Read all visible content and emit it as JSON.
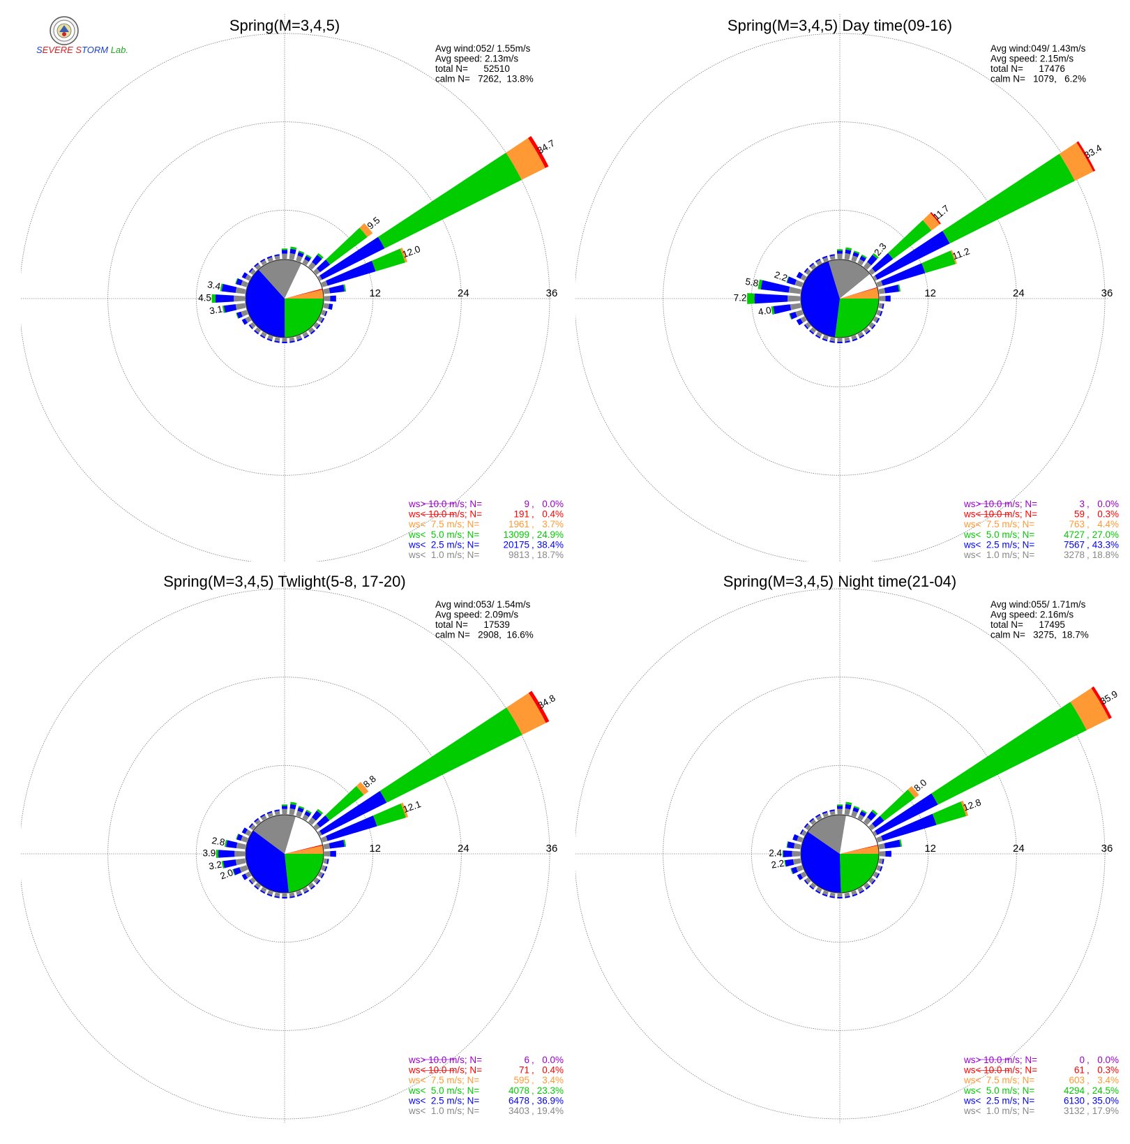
{
  "colors": {
    "ws_gt_10": "#9900cc",
    "ws_lt_10": "#ff0000",
    "ws_lt_7_5": "#ff9933",
    "ws_lt_5": "#00cc00",
    "ws_lt_2_5": "#0000ff",
    "ws_lt_1": "#888888",
    "calm": "#ffffff",
    "grid": "#888888",
    "text": "#000000"
  },
  "logo": {
    "seal_icon": "university-seal-icon",
    "parts": [
      {
        "text": "S",
        "color": "#1a3fd6"
      },
      {
        "text": "EVERE",
        "color": "#e02020"
      },
      {
        "text": " ",
        "color": "#000000"
      },
      {
        "text": "S",
        "color": "#e02020"
      },
      {
        "text": "TORM",
        "color": "#1a3fd6"
      },
      {
        "text": " Lab.",
        "color": "#22a822"
      }
    ]
  },
  "chart_data": [
    {
      "type": "windrose",
      "title": "Spring(M=3,4,5)",
      "rlim": [
        0,
        36
      ],
      "rings": [
        12,
        24,
        36
      ],
      "ring_labels": [
        "12",
        "24",
        "36"
      ],
      "grid": true,
      "stats": [
        "Avg wind:052/ 1.55m/s",
        "Avg speed: 2.13m/s",
        "total N=      52510",
        "calm N=   7262,  13.8%"
      ],
      "speed_classes": [
        "ws> 10.0 m/s",
        "ws< 10.0 m/s",
        "ws<  7.5 m/s",
        "ws<  5.0 m/s",
        "ws<  2.5 m/s",
        "ws<  1.0 m/s"
      ],
      "legend": [
        {
          "label": "ws> 10.0 m/s; N=",
          "n": "9",
          "pct": "0.0%"
        },
        {
          "label": "ws< 10.0 m/s; N=",
          "n": "191",
          "pct": "0.4%"
        },
        {
          "label": "ws<  7.5 m/s; N=",
          "n": "1961",
          "pct": "3.7%"
        },
        {
          "label": "ws<  5.0 m/s; N=",
          "n": "13099",
          "pct": "24.9%"
        },
        {
          "label": "ws<  2.5 m/s; N=",
          "n": "20175",
          "pct": "38.4%"
        },
        {
          "label": "ws<  1.0 m/s; N=",
          "n": "9813",
          "pct": "18.7%"
        }
      ],
      "pie": {
        "ws_lt_1": 18.7,
        "ws_lt_2_5": 38.4,
        "ws_lt_5": 24.9,
        "ws_lt_7_5": 3.7,
        "ws_lt_10": 0.4,
        "calm": 13.8
      },
      "directions": [
        {
          "dir": 60,
          "total": 34.7,
          "label": "34.7",
          "segs": [
            0.3,
            9.5,
            20.8,
            3.6,
            0.5
          ]
        },
        {
          "dir": 50,
          "total": 9.5,
          "label": "9.5",
          "segs": [
            0.6,
            1.7,
            6.3,
            0.9,
            0
          ]
        },
        {
          "dir": 70,
          "total": 12.0,
          "label": "12.0",
          "segs": [
            0.7,
            6.8,
            4.2,
            0.3,
            0
          ]
        },
        {
          "dir": 80,
          "total": 3.0,
          "segs": [
            0.8,
            2.0,
            0.2,
            0,
            0
          ]
        },
        {
          "dir": 40,
          "total": 2.3,
          "segs": [
            0.8,
            1.2,
            0.3,
            0,
            0
          ]
        },
        {
          "dir": 30,
          "total": 1.3,
          "segs": [
            0.6,
            0.5,
            0.2,
            0,
            0
          ]
        },
        {
          "dir": 20,
          "total": 1.4,
          "segs": [
            0.7,
            0.5,
            0.2,
            0,
            0
          ]
        },
        {
          "dir": 10,
          "total": 1.7,
          "segs": [
            0.8,
            0.6,
            0.3,
            0,
            0
          ]
        },
        {
          "dir": 0,
          "total": 1.4,
          "segs": [
            0.7,
            0.5,
            0.2,
            0,
            0
          ]
        },
        {
          "dir": 90,
          "total": 1.6,
          "segs": [
            0.8,
            0.8,
            0,
            0,
            0
          ]
        },
        {
          "dir": 100,
          "total": 1.2,
          "segs": [
            0.7,
            0.5,
            0,
            0,
            0
          ]
        },
        {
          "dir": 270,
          "total": 4.5,
          "label": "4.5",
          "segs": [
            1.5,
            2.5,
            0.5,
            0,
            0
          ]
        },
        {
          "dir": 280,
          "total": 3.4,
          "label": "3.4",
          "segs": [
            1.3,
            1.9,
            0.2,
            0,
            0
          ]
        },
        {
          "dir": 260,
          "total": 3.1,
          "label": "3.1",
          "segs": [
            1.3,
            1.6,
            0.2,
            0,
            0
          ]
        },
        {
          "dir": 290,
          "total": 1.6,
          "segs": [
            0.8,
            0.7,
            0.1,
            0,
            0
          ]
        },
        {
          "dir": 250,
          "total": 1.5,
          "segs": [
            0.8,
            0.6,
            0.1,
            0,
            0
          ]
        },
        {
          "dir": 300,
          "total": 1.1,
          "segs": [
            0.6,
            0.5,
            0,
            0,
            0
          ]
        },
        {
          "dir": 240,
          "total": 1.1,
          "segs": [
            0.6,
            0.5,
            0,
            0,
            0
          ]
        }
      ]
    },
    {
      "type": "windrose",
      "title": "Spring(M=3,4,5) Day time(09-16)",
      "rlim": [
        0,
        36
      ],
      "rings": [
        12,
        24,
        36
      ],
      "ring_labels": [
        "12",
        "24",
        "36"
      ],
      "grid": true,
      "stats": [
        "Avg wind:049/ 1.43m/s",
        "Avg speed: 2.15m/s",
        "total N=      17476",
        "calm N=   1079,   6.2%"
      ],
      "speed_classes": [
        "ws> 10.0 m/s",
        "ws< 10.0 m/s",
        "ws<  7.5 m/s",
        "ws<  5.0 m/s",
        "ws<  2.5 m/s",
        "ws<  1.0 m/s"
      ],
      "legend": [
        {
          "label": "ws> 10.0 m/s; N=",
          "n": "3",
          "pct": "0.0%"
        },
        {
          "label": "ws< 10.0 m/s; N=",
          "n": "59",
          "pct": "0.3%"
        },
        {
          "label": "ws<  7.5 m/s; N=",
          "n": "763",
          "pct": "4.4%"
        },
        {
          "label": "ws<  5.0 m/s; N=",
          "n": "4727",
          "pct": "27.0%"
        },
        {
          "label": "ws<  2.5 m/s; N=",
          "n": "7567",
          "pct": "43.3%"
        },
        {
          "label": "ws<  1.0 m/s; N=",
          "n": "3278",
          "pct": "18.8%"
        }
      ],
      "pie": {
        "ws_lt_1": 18.8,
        "ws_lt_2_5": 43.3,
        "ws_lt_5": 27.0,
        "ws_lt_7_5": 4.4,
        "ws_lt_10": 0.3,
        "calm": 6.2
      },
      "directions": [
        {
          "dir": 60,
          "total": 33.4,
          "label": "33.4",
          "segs": [
            0.3,
            11.0,
            19.0,
            2.8,
            0.3
          ]
        },
        {
          "dir": 50,
          "total": 11.7,
          "label": "11.7",
          "segs": [
            0.6,
            3.0,
            6.5,
            1.4,
            0.2
          ]
        },
        {
          "dir": 70,
          "total": 11.2,
          "label": "11.2",
          "segs": [
            0.7,
            6.0,
            4.3,
            0.2,
            0
          ]
        },
        {
          "dir": 40,
          "total": 2.3,
          "label": "2.3",
          "segs": [
            0.8,
            1.2,
            0.3,
            0,
            0
          ]
        },
        {
          "dir": 80,
          "total": 2.9,
          "segs": [
            0.8,
            1.9,
            0.2,
            0,
            0
          ]
        },
        {
          "dir": 30,
          "total": 1.3,
          "segs": [
            0.6,
            0.5,
            0.2,
            0,
            0
          ]
        },
        {
          "dir": 20,
          "total": 1.4,
          "segs": [
            0.7,
            0.5,
            0.2,
            0,
            0
          ]
        },
        {
          "dir": 10,
          "total": 1.6,
          "segs": [
            0.8,
            0.5,
            0.3,
            0,
            0
          ]
        },
        {
          "dir": 0,
          "total": 1.3,
          "segs": [
            0.7,
            0.4,
            0.2,
            0,
            0
          ]
        },
        {
          "dir": 90,
          "total": 1.5,
          "segs": [
            0.8,
            0.7,
            0,
            0,
            0
          ]
        },
        {
          "dir": 270,
          "total": 7.2,
          "label": "7.2",
          "segs": [
            1.7,
            4.5,
            1.0,
            0,
            0
          ]
        },
        {
          "dir": 280,
          "total": 5.8,
          "label": "5.8",
          "segs": [
            1.6,
            3.8,
            0.4,
            0,
            0
          ]
        },
        {
          "dir": 260,
          "total": 4.0,
          "label": "4.0",
          "segs": [
            1.4,
            2.3,
            0.3,
            0,
            0
          ]
        },
        {
          "dir": 290,
          "total": 2.2,
          "label": "2.2",
          "segs": [
            1.0,
            1.1,
            0.1,
            0,
            0
          ]
        },
        {
          "dir": 250,
          "total": 1.8,
          "segs": [
            0.9,
            0.8,
            0.1,
            0,
            0
          ]
        },
        {
          "dir": 300,
          "total": 1.2,
          "segs": [
            0.6,
            0.6,
            0,
            0,
            0
          ]
        },
        {
          "dir": 240,
          "total": 1.2,
          "segs": [
            0.6,
            0.6,
            0,
            0,
            0
          ]
        }
      ]
    },
    {
      "type": "windrose",
      "title": "Spring(M=3,4,5) Twlight(5-8, 17-20)",
      "rlim": [
        0,
        36
      ],
      "rings": [
        12,
        24,
        36
      ],
      "ring_labels": [
        "12",
        "24",
        "36"
      ],
      "grid": true,
      "stats": [
        "Avg wind:053/ 1.54m/s",
        "Avg speed: 2.09m/s",
        "total N=      17539",
        "calm N=   2908,  16.6%"
      ],
      "speed_classes": [
        "ws> 10.0 m/s",
        "ws< 10.0 m/s",
        "ws<  7.5 m/s",
        "ws<  5.0 m/s",
        "ws<  2.5 m/s",
        "ws<  1.0 m/s"
      ],
      "legend": [
        {
          "label": "ws> 10.0 m/s; N=",
          "n": "6",
          "pct": "0.0%"
        },
        {
          "label": "ws< 10.0 m/s; N=",
          "n": "71",
          "pct": "0.4%"
        },
        {
          "label": "ws<  7.5 m/s; N=",
          "n": "595",
          "pct": "3.4%"
        },
        {
          "label": "ws<  5.0 m/s; N=",
          "n": "4078",
          "pct": "23.3%"
        },
        {
          "label": "ws<  2.5 m/s; N=",
          "n": "6478",
          "pct": "36.9%"
        },
        {
          "label": "ws<  1.0 m/s; N=",
          "n": "3403",
          "pct": "19.4%"
        }
      ],
      "pie": {
        "ws_lt_1": 19.4,
        "ws_lt_2_5": 36.9,
        "ws_lt_5": 23.3,
        "ws_lt_7_5": 3.4,
        "ws_lt_10": 0.4,
        "calm": 16.6
      },
      "directions": [
        {
          "dir": 60,
          "total": 34.8,
          "label": "34.8",
          "segs": [
            0.3,
            9.8,
            20.6,
            3.6,
            0.5
          ]
        },
        {
          "dir": 50,
          "total": 8.8,
          "label": "8.8",
          "segs": [
            0.6,
            1.6,
            5.8,
            0.8,
            0
          ]
        },
        {
          "dir": 70,
          "total": 12.1,
          "label": "12.1",
          "segs": [
            0.7,
            7.0,
            4.1,
            0.3,
            0
          ]
        },
        {
          "dir": 80,
          "total": 3.0,
          "segs": [
            0.8,
            2.0,
            0.2,
            0,
            0
          ]
        },
        {
          "dir": 40,
          "total": 2.2,
          "segs": [
            0.8,
            1.1,
            0.3,
            0,
            0
          ]
        },
        {
          "dir": 30,
          "total": 1.3,
          "segs": [
            0.6,
            0.5,
            0.2,
            0,
            0
          ]
        },
        {
          "dir": 20,
          "total": 1.4,
          "segs": [
            0.7,
            0.5,
            0.2,
            0,
            0
          ]
        },
        {
          "dir": 10,
          "total": 1.7,
          "segs": [
            0.8,
            0.6,
            0.3,
            0,
            0
          ]
        },
        {
          "dir": 0,
          "total": 1.3,
          "segs": [
            0.7,
            0.4,
            0.2,
            0,
            0
          ]
        },
        {
          "dir": 90,
          "total": 1.6,
          "segs": [
            0.8,
            0.8,
            0,
            0,
            0
          ]
        },
        {
          "dir": 270,
          "total": 3.9,
          "label": "3.9",
          "segs": [
            1.4,
            2.2,
            0.3,
            0,
            0
          ]
        },
        {
          "dir": 280,
          "total": 2.8,
          "label": "2.8",
          "segs": [
            1.2,
            1.4,
            0.2,
            0,
            0
          ]
        },
        {
          "dir": 260,
          "total": 3.2,
          "label": "3.2",
          "segs": [
            1.3,
            1.7,
            0.2,
            0,
            0
          ]
        },
        {
          "dir": 250,
          "total": 2.0,
          "label": "2.0",
          "segs": [
            1.0,
            0.9,
            0.1,
            0,
            0
          ]
        },
        {
          "dir": 290,
          "total": 1.5,
          "segs": [
            0.8,
            0.6,
            0.1,
            0,
            0
          ]
        },
        {
          "dir": 300,
          "total": 1.1,
          "segs": [
            0.6,
            0.5,
            0,
            0,
            0
          ]
        },
        {
          "dir": 240,
          "total": 1.1,
          "segs": [
            0.6,
            0.5,
            0,
            0,
            0
          ]
        }
      ]
    },
    {
      "type": "windrose",
      "title": "Spring(M=3,4,5) Night time(21-04)",
      "rlim": [
        0,
        36
      ],
      "rings": [
        12,
        24,
        36
      ],
      "ring_labels": [
        "12",
        "24",
        "36"
      ],
      "grid": true,
      "stats": [
        "Avg wind:055/ 1.71m/s",
        "Avg speed: 2.16m/s",
        "total N=      17495",
        "calm N=   3275,  18.7%"
      ],
      "speed_classes": [
        "ws> 10.0 m/s",
        "ws< 10.0 m/s",
        "ws<  7.5 m/s",
        "ws<  5.0 m/s",
        "ws<  2.5 m/s",
        "ws<  1.0 m/s"
      ],
      "legend": [
        {
          "label": "ws> 10.0 m/s; N=",
          "n": "0",
          "pct": "0.0%"
        },
        {
          "label": "ws< 10.0 m/s; N=",
          "n": "61",
          "pct": "0.3%"
        },
        {
          "label": "ws<  7.5 m/s; N=",
          "n": "603",
          "pct": "3.4%"
        },
        {
          "label": "ws<  5.0 m/s; N=",
          "n": "4294",
          "pct": "24.5%"
        },
        {
          "label": "ws<  2.5 m/s; N=",
          "n": "6130",
          "pct": "35.0%"
        },
        {
          "label": "ws<  1.0 m/s; N=",
          "n": "3132",
          "pct": "17.9%"
        }
      ],
      "pie": {
        "ws_lt_1": 17.9,
        "ws_lt_2_5": 35.0,
        "ws_lt_5": 24.5,
        "ws_lt_7_5": 3.4,
        "ws_lt_10": 0.3,
        "calm": 18.7
      },
      "directions": [
        {
          "dir": 60,
          "total": 35.9,
          "label": "35.9",
          "segs": [
            0.3,
            9.2,
            22.6,
            3.4,
            0.4
          ]
        },
        {
          "dir": 50,
          "total": 8.0,
          "label": "8.0",
          "segs": [
            0.6,
            1.5,
            5.2,
            0.7,
            0
          ]
        },
        {
          "dir": 70,
          "total": 12.8,
          "label": "12.8",
          "segs": [
            0.7,
            7.6,
            4.2,
            0.3,
            0
          ]
        },
        {
          "dir": 80,
          "total": 3.1,
          "segs": [
            0.8,
            2.1,
            0.2,
            0,
            0
          ]
        },
        {
          "dir": 40,
          "total": 2.1,
          "segs": [
            0.8,
            1.0,
            0.3,
            0,
            0
          ]
        },
        {
          "dir": 30,
          "total": 1.3,
          "segs": [
            0.6,
            0.5,
            0.2,
            0,
            0
          ]
        },
        {
          "dir": 20,
          "total": 1.4,
          "segs": [
            0.7,
            0.5,
            0.2,
            0,
            0
          ]
        },
        {
          "dir": 10,
          "total": 1.7,
          "segs": [
            0.8,
            0.6,
            0.3,
            0,
            0
          ]
        },
        {
          "dir": 0,
          "total": 1.3,
          "segs": [
            0.7,
            0.4,
            0.2,
            0,
            0
          ]
        },
        {
          "dir": 90,
          "total": 1.6,
          "segs": [
            0.8,
            0.8,
            0,
            0,
            0
          ]
        },
        {
          "dir": 270,
          "total": 2.4,
          "label": "2.4",
          "segs": [
            1.1,
            1.2,
            0.1,
            0,
            0
          ]
        },
        {
          "dir": 260,
          "total": 2.2,
          "label": "2.2",
          "segs": [
            1.0,
            1.1,
            0.1,
            0,
            0
          ]
        },
        {
          "dir": 280,
          "total": 1.9,
          "segs": [
            0.9,
            0.9,
            0.1,
            0,
            0
          ]
        },
        {
          "dir": 250,
          "total": 1.6,
          "segs": [
            0.8,
            0.7,
            0.1,
            0,
            0
          ]
        },
        {
          "dir": 290,
          "total": 1.3,
          "segs": [
            0.7,
            0.6,
            0,
            0,
            0
          ]
        },
        {
          "dir": 240,
          "total": 1.1,
          "segs": [
            0.6,
            0.5,
            0,
            0,
            0
          ]
        }
      ]
    }
  ]
}
